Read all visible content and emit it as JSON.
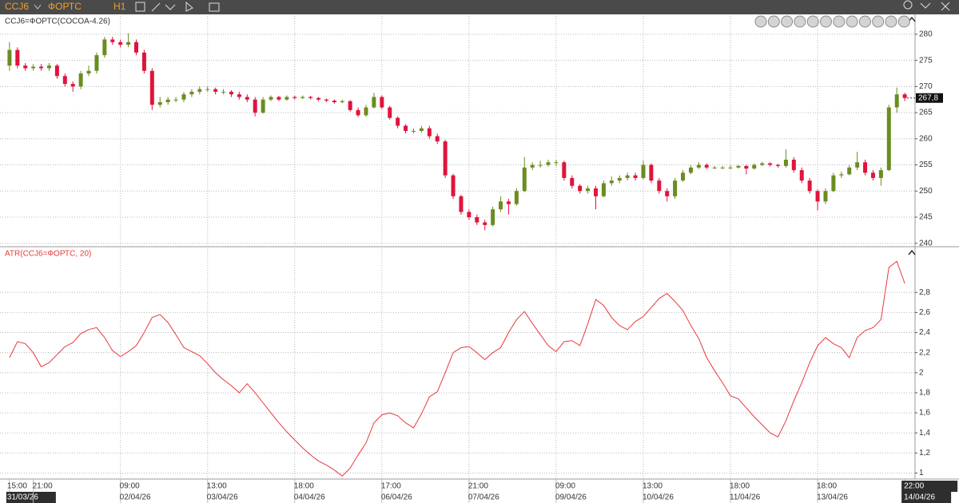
{
  "toolbar": {
    "symbol": "CCJ6",
    "exchange": "ФОРТС",
    "timeframe": "H1"
  },
  "chart_data": [
    {
      "type": "candlestick",
      "title": "CCJ6=ФОРТС(COCOA-4.26)",
      "up_color": "#6b8c21",
      "down_color": "#e0143c",
      "grid": true,
      "xlim": [
        -1.2,
        114.3
      ],
      "xticks": [
        {
          "value": 0,
          "label": "15:00"
        },
        {
          "value": 3,
          "label": "21:00"
        },
        {
          "value": 14,
          "label": "09:00"
        },
        {
          "value": 25,
          "label": "13:00"
        },
        {
          "value": 36,
          "label": "18:00"
        },
        {
          "value": 47,
          "label": "17:00"
        },
        {
          "value": 58,
          "label": "21:00"
        },
        {
          "value": 69,
          "label": "09:00"
        },
        {
          "value": 80,
          "label": "13:00"
        },
        {
          "value": 91,
          "label": "18:00"
        },
        {
          "value": 102,
          "label": "18:00"
        },
        {
          "value": 113,
          "label": "22:00"
        }
      ],
      "xtick_dates": [
        "31/03/26",
        null,
        "02/04/26",
        "03/04/26",
        "04/04/26",
        "06/04/26",
        "07/04/26",
        "09/04/26",
        "10/04/26",
        "11/04/26",
        "13/04/26",
        "14/04/26"
      ],
      "ylim": [
        239.5,
        283.5
      ],
      "yticks": [
        240,
        245,
        250,
        255,
        260,
        265,
        270,
        275,
        280
      ],
      "last_price": {
        "value": 267.8,
        "label": "267,8"
      },
      "ohlc": [
        [
          274,
          278.5,
          273,
          277
        ],
        [
          277,
          277.5,
          273.5,
          274
        ],
        [
          274,
          274.5,
          273,
          273.5
        ],
        [
          273.5,
          274.3,
          273,
          273.8
        ],
        [
          273.8,
          274.3,
          273,
          273.5
        ],
        [
          273.5,
          274.5,
          273,
          274
        ],
        [
          274,
          274.3,
          271.5,
          272
        ],
        [
          272,
          272.5,
          270,
          270.5
        ],
        [
          270.5,
          271,
          269,
          270
        ],
        [
          270,
          273,
          269.5,
          272.5
        ],
        [
          272.5,
          274,
          272,
          273
        ],
        [
          273,
          276.5,
          272.5,
          276
        ],
        [
          276,
          279.5,
          275.5,
          279
        ],
        [
          279,
          279.5,
          278,
          278.5
        ],
        [
          278.5,
          279,
          277.5,
          278
        ],
        [
          278,
          280.2,
          277.5,
          278.5
        ],
        [
          278.5,
          279,
          276,
          276.5
        ],
        [
          276.5,
          277,
          272.5,
          273
        ],
        [
          273,
          273.5,
          265.5,
          266.5
        ],
        [
          266.5,
          268,
          266,
          267
        ],
        [
          267,
          268,
          266.5,
          267.5
        ],
        [
          267.5,
          268,
          267,
          267.5
        ],
        [
          267.5,
          269,
          267,
          268.5
        ],
        [
          268.5,
          269.5,
          268,
          269
        ],
        [
          269,
          270,
          268.5,
          269.5
        ],
        [
          269.5,
          270,
          269,
          269.5
        ],
        [
          269.5,
          269.8,
          268.5,
          269
        ],
        [
          269,
          269.5,
          268.5,
          269
        ],
        [
          269,
          269.3,
          268,
          268.5
        ],
        [
          268.5,
          269,
          267.5,
          268
        ],
        [
          268,
          268.5,
          267,
          267.5
        ],
        [
          267.5,
          268,
          264.3,
          265
        ],
        [
          265,
          268,
          264.8,
          267.5
        ],
        [
          267.5,
          268.3,
          267.2,
          268
        ],
        [
          268,
          268.2,
          267.2,
          267.5
        ],
        [
          267.5,
          268.3,
          267.3,
          268
        ],
        [
          268,
          268.2,
          267.5,
          267.8
        ],
        [
          267.8,
          268.3,
          267.6,
          268
        ],
        [
          268,
          268.2,
          267.5,
          267.8
        ],
        [
          267.8,
          268,
          267.2,
          267.5
        ],
        [
          267.5,
          267.7,
          267,
          267.3
        ],
        [
          267.3,
          267.5,
          266.7,
          267
        ],
        [
          267,
          267.5,
          266.8,
          267.2
        ],
        [
          267.2,
          267.4,
          265.2,
          265.5
        ],
        [
          265.5,
          266,
          264.2,
          264.5
        ],
        [
          264.5,
          266.5,
          264.2,
          266
        ],
        [
          266,
          268.8,
          265.8,
          268
        ],
        [
          268,
          268.3,
          265.7,
          266
        ],
        [
          266,
          266.3,
          263.7,
          264
        ],
        [
          264,
          264.3,
          262,
          262.5
        ],
        [
          262.5,
          262.8,
          261,
          261.5
        ],
        [
          261.5,
          262,
          261,
          261.5
        ],
        [
          261.5,
          262.5,
          261.2,
          262
        ],
        [
          262,
          262.5,
          260,
          260.5
        ],
        [
          260.5,
          261,
          259,
          259.5
        ],
        [
          259.5,
          259.8,
          252.5,
          253
        ],
        [
          253,
          253.3,
          248.5,
          249
        ],
        [
          249,
          249.3,
          245.5,
          246
        ],
        [
          246,
          246.5,
          244.5,
          245
        ],
        [
          245,
          245.5,
          243.5,
          244
        ],
        [
          244,
          244.5,
          242.5,
          243.5
        ],
        [
          243.5,
          247,
          243.2,
          246.5
        ],
        [
          246.5,
          249,
          246,
          248
        ],
        [
          248,
          248.5,
          245.5,
          247.5
        ],
        [
          247.5,
          250.5,
          247.2,
          250
        ],
        [
          250,
          256.5,
          249.8,
          254.5
        ],
        [
          254.5,
          255.5,
          254,
          255
        ],
        [
          255,
          255.8,
          254.5,
          255
        ],
        [
          255,
          256,
          254.7,
          255.5
        ],
        [
          255.5,
          256,
          254.8,
          255.5
        ],
        [
          255.5,
          255.8,
          252,
          252.5
        ],
        [
          252.5,
          253,
          250.5,
          251
        ],
        [
          251,
          251.3,
          249.5,
          250
        ],
        [
          250,
          251,
          249.5,
          250.5
        ],
        [
          250.5,
          251,
          246.5,
          249
        ],
        [
          249,
          252,
          248.8,
          251.5
        ],
        [
          251.5,
          252.8,
          251,
          252
        ],
        [
          252,
          253,
          251.5,
          252.5
        ],
        [
          252.5,
          253.5,
          252,
          253
        ],
        [
          253,
          253.5,
          252,
          252.5
        ],
        [
          252.5,
          255.8,
          252.2,
          255
        ],
        [
          255,
          255.3,
          251.5,
          252
        ],
        [
          252,
          252.5,
          249.5,
          250
        ],
        [
          250,
          250.5,
          248,
          249
        ],
        [
          249,
          252.5,
          248.5,
          252
        ],
        [
          252,
          254,
          251.8,
          253.5
        ],
        [
          253.5,
          255,
          253.2,
          254.5
        ],
        [
          254.5,
          255.5,
          254.2,
          255
        ],
        [
          255,
          255.3,
          254.2,
          254.5
        ],
        [
          254.5,
          254.8,
          254.2,
          254.5
        ],
        [
          254.5,
          254.8,
          254.2,
          254.5
        ],
        [
          254.5,
          254.9,
          254.2,
          254.5
        ],
        [
          254.5,
          255,
          254.3,
          254.8
        ],
        [
          254.8,
          255,
          253.2,
          254.3
        ],
        [
          254.3,
          255.3,
          254.1,
          255
        ],
        [
          255,
          255.6,
          254.8,
          255.3
        ],
        [
          255.3,
          255.5,
          254.7,
          255
        ],
        [
          255,
          255.2,
          254.5,
          254.8
        ],
        [
          254.8,
          258,
          254.5,
          256
        ],
        [
          256,
          256.5,
          253.5,
          254
        ],
        [
          254,
          254.5,
          251.5,
          252
        ],
        [
          252,
          252.5,
          249.5,
          250
        ],
        [
          250,
          250.3,
          246.3,
          248
        ],
        [
          248,
          250.5,
          247.5,
          250
        ],
        [
          250,
          253.5,
          249.8,
          253
        ],
        [
          253,
          253.7,
          252.5,
          253.2
        ],
        [
          253.2,
          255,
          253,
          254.5
        ],
        [
          254.5,
          257.5,
          254,
          255.5
        ],
        [
          255.5,
          256,
          253,
          253.5
        ],
        [
          253.5,
          254,
          252,
          252.5
        ],
        [
          252.5,
          254.5,
          251,
          254
        ],
        [
          254,
          266.5,
          253.8,
          266
        ],
        [
          266,
          269.8,
          265,
          268.5
        ],
        [
          268.5,
          268.8,
          267.2,
          267.8
        ]
      ]
    },
    {
      "type": "line",
      "title": "ATR(CCJ6=ФОРТС, 20)",
      "color": "#e8383c",
      "grid": true,
      "ylim": [
        0.94,
        3.24
      ],
      "yticks": [
        1,
        {
          "value": 1.2,
          "label": "1,2"
        },
        {
          "value": 1.4,
          "label": "1,4"
        },
        {
          "value": 1.6,
          "label": "1,6"
        },
        {
          "value": 1.8,
          "label": "1,8"
        },
        2,
        {
          "value": 2.2,
          "label": "2,2"
        },
        {
          "value": 2.4,
          "label": "2,4"
        },
        {
          "value": 2.6,
          "label": "2,6"
        },
        {
          "value": 2.8,
          "label": "2,8"
        }
      ],
      "values": [
        2.15,
        2.31,
        2.29,
        2.2,
        2.06,
        2.1,
        2.18,
        2.26,
        2.3,
        2.39,
        2.43,
        2.45,
        2.35,
        2.22,
        2.16,
        2.21,
        2.27,
        2.4,
        2.55,
        2.58,
        2.5,
        2.38,
        2.25,
        2.21,
        2.17,
        2.09,
        2.0,
        1.93,
        1.87,
        1.8,
        1.89,
        1.8,
        1.7,
        1.6,
        1.5,
        1.41,
        1.33,
        1.25,
        1.18,
        1.12,
        1.08,
        1.03,
        0.97,
        1.05,
        1.18,
        1.3,
        1.5,
        1.58,
        1.6,
        1.57,
        1.5,
        1.45,
        1.59,
        1.76,
        1.81,
        2.0,
        2.2,
        2.25,
        2.26,
        2.2,
        2.13,
        2.2,
        2.25,
        2.4,
        2.53,
        2.61,
        2.49,
        2.38,
        2.27,
        2.21,
        2.31,
        2.32,
        2.27,
        2.49,
        2.73,
        2.67,
        2.55,
        2.47,
        2.43,
        2.51,
        2.56,
        2.65,
        2.74,
        2.79,
        2.71,
        2.62,
        2.47,
        2.34,
        2.15,
        2.02,
        1.9,
        1.77,
        1.74,
        1.65,
        1.56,
        1.48,
        1.4,
        1.36,
        1.52,
        1.72,
        1.9,
        2.1,
        2.27,
        2.35,
        2.29,
        2.25,
        2.15,
        2.35,
        2.42,
        2.45,
        2.53,
        3.05,
        3.11,
        2.89
      ]
    }
  ]
}
